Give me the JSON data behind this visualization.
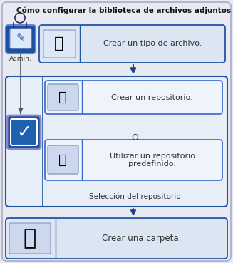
{
  "title": "Cómo configurar la biblioteca de archivos adjuntos",
  "title_fontsize": 7.5,
  "bg_color": "#e8eaf2",
  "outer_bg": "#e8eaf2",
  "box1_bg": "#dce6f2",
  "box1_border": "#2255a4",
  "group_bg": "#e8eef8",
  "group_border": "#2255a4",
  "inner_box_bg": "#f0f4fa",
  "inner_box_border": "#3366cc",
  "box4_bg": "#dce6f2",
  "box4_border": "#2255a4",
  "arrow_color": "#1a3f8f",
  "line_color": "#555555",
  "text_color": "#333333",
  "admin_label": "Admin.",
  "step1_text": "Crear un tipo de archivo.",
  "step2_text": "Crear un repositorio.",
  "step3_text": "Utilizar un repositorio\npredefinido.",
  "or_text": "O",
  "selection_text": "Selección del repositorio",
  "step4_text": "Crear una carpeta.",
  "admin_icon_bg": "#1a50a0",
  "admin_icon_border": "#7080cc",
  "checkbox_bg": "#1a50a0",
  "checkbox_border": "#8888cc"
}
